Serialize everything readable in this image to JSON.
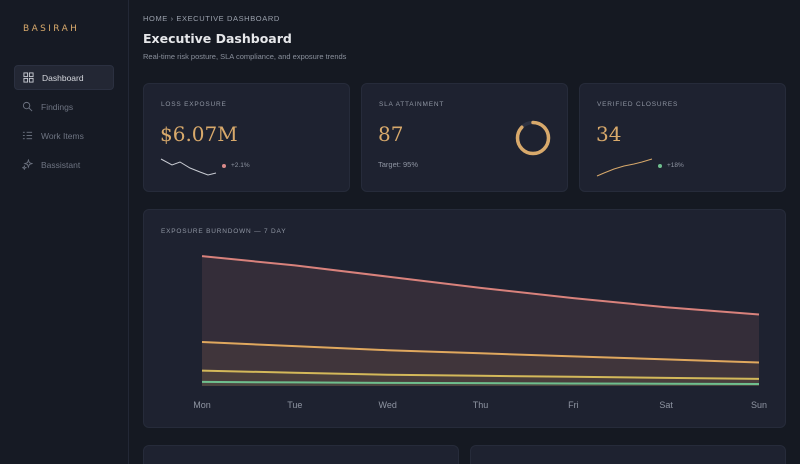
{
  "brand": "BASIRAH",
  "sidebar": {
    "items": [
      {
        "label": "Dashboard",
        "icon": "grid-icon",
        "active": true
      },
      {
        "label": "Findings",
        "icon": "search-icon",
        "active": false
      },
      {
        "label": "Work Items",
        "icon": "list-icon",
        "active": false
      },
      {
        "label": "Bassistant",
        "icon": "sparkle-icon",
        "active": false
      }
    ]
  },
  "header": {
    "breadcrumb": "HOME › EXECUTIVE DASHBOARD",
    "title": "Executive Dashboard",
    "subtitle": "Real-time risk posture, SLA compliance, and exposure trends"
  },
  "kpis": {
    "loss": {
      "label": "LOSS EXPOSURE",
      "value": "$6.07M",
      "trend": "+2.1%",
      "trend_color": "#d98a8a"
    },
    "sla": {
      "label": "SLA ATTAINMENT",
      "value": "87",
      "target": "Target: 95%",
      "progress": 0.87
    },
    "closures": {
      "label": "VERIFIED CLOSURES",
      "value": "34",
      "trend": "+18%",
      "trend_color": "#6fbf8e"
    }
  },
  "colors": {
    "accent": "#d8a96b",
    "critical": "#d9827c",
    "high": "#e0a85e",
    "medium": "#d4b95a",
    "low": "#6fbf8e"
  },
  "chart_data": {
    "type": "area",
    "title": "EXPOSURE BURNDOWN — 7 DAY",
    "categories": [
      "Mon",
      "Tue",
      "Wed",
      "Thu",
      "Fri",
      "Sat",
      "Sun"
    ],
    "ylim": [
      0,
      135
    ],
    "series": [
      {
        "color": "#d9827c",
        "values": [
          127,
          118,
          107,
          96,
          86,
          77,
          70
        ]
      },
      {
        "color": "#e0a85e",
        "values": [
          43,
          39,
          35,
          32,
          29,
          26,
          23
        ]
      },
      {
        "color": "#d4b95a",
        "values": [
          15,
          13,
          11,
          10,
          9,
          8,
          7
        ]
      },
      {
        "color": "#6fbf8e",
        "values": [
          4,
          3.5,
          3,
          2.8,
          2.5,
          2.2,
          2
        ]
      }
    ],
    "grid": false
  }
}
